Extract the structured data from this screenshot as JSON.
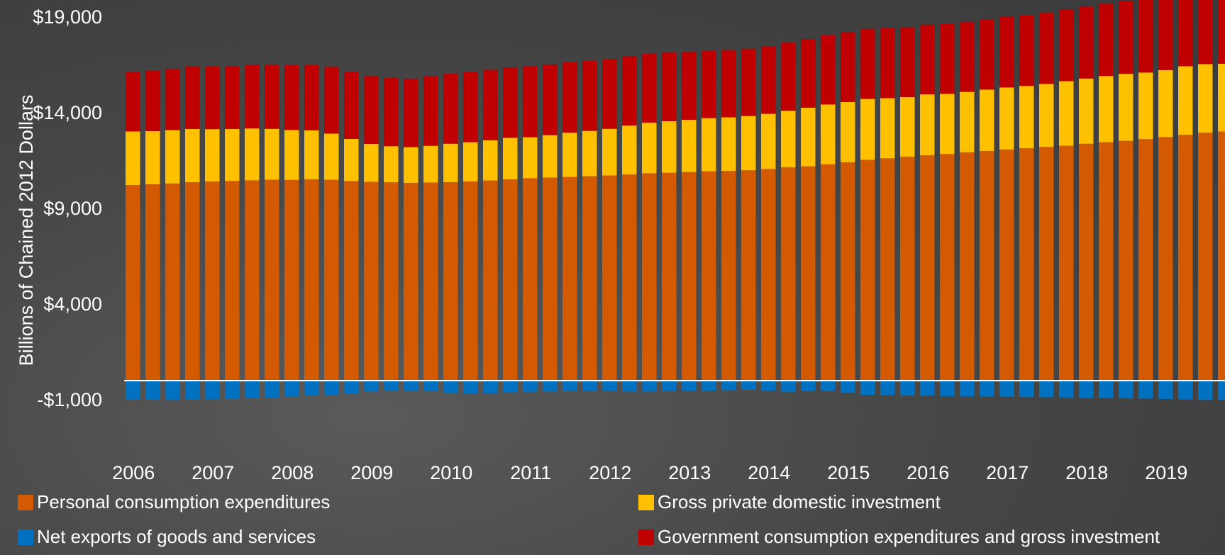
{
  "chart_data": {
    "type": "bar",
    "stacked": true,
    "ylabel": "Billions of Chained 2012 Dollars",
    "ylim": [
      -1000,
      19000
    ],
    "yticks": [
      -1000,
      4000,
      9000,
      14000,
      19000
    ],
    "ytick_labels": [
      "-$1,000",
      "$4,000",
      "$9,000",
      "$14,000",
      "$19,000"
    ],
    "x_year_labels": [
      "2006",
      "2007",
      "2008",
      "2009",
      "2010",
      "2011",
      "2012",
      "2013",
      "2014",
      "2015",
      "2016",
      "2017",
      "2018",
      "2019"
    ],
    "quarters_per_year": 4,
    "legend_position": "bottom",
    "series": [
      {
        "name": "Personal consumption expenditures",
        "color": "#D35A00",
        "values": [
          10220,
          10260,
          10300,
          10370,
          10400,
          10430,
          10460,
          10500,
          10490,
          10520,
          10490,
          10430,
          10390,
          10370,
          10330,
          10350,
          10370,
          10410,
          10460,
          10520,
          10580,
          10610,
          10640,
          10680,
          10720,
          10770,
          10830,
          10860,
          10900,
          10940,
          10960,
          10990,
          11060,
          11140,
          11200,
          11300,
          11410,
          11540,
          11620,
          11700,
          11780,
          11840,
          11930,
          12000,
          12080,
          12140,
          12210,
          12270,
          12380,
          12460,
          12530,
          12620,
          12730,
          12840,
          12960,
          13020,
          13100
        ]
      },
      {
        "name": "Gross private domestic investment",
        "color": "#FFC000",
        "values": [
          2800,
          2780,
          2790,
          2780,
          2740,
          2720,
          2720,
          2660,
          2610,
          2560,
          2420,
          2200,
          1980,
          1880,
          1870,
          1920,
          2010,
          2050,
          2100,
          2170,
          2140,
          2220,
          2320,
          2370,
          2440,
          2560,
          2650,
          2700,
          2730,
          2780,
          2800,
          2840,
          2880,
          2960,
          3060,
          3130,
          3150,
          3180,
          3140,
          3120,
          3180,
          3140,
          3160,
          3210,
          3240,
          3260,
          3290,
          3380,
          3410,
          3460,
          3500,
          3480,
          3500,
          3590,
          3580,
          3540,
          3570
        ]
      },
      {
        "name": "Net exports of goods and services",
        "color": "#0070C0",
        "values": [
          -980,
          -1000,
          -1010,
          -980,
          -960,
          -950,
          -920,
          -880,
          -830,
          -780,
          -760,
          -700,
          -570,
          -510,
          -530,
          -560,
          -650,
          -670,
          -660,
          -620,
          -580,
          -570,
          -560,
          -560,
          -560,
          -570,
          -570,
          -560,
          -550,
          -520,
          -500,
          -480,
          -530,
          -580,
          -560,
          -540,
          -640,
          -740,
          -760,
          -780,
          -790,
          -810,
          -820,
          -830,
          -840,
          -860,
          -870,
          -880,
          -910,
          -920,
          -930,
          -940,
          -960,
          -990,
          -1010,
          -1020,
          -1030
        ]
      },
      {
        "name": "Government consumption expenditures and gross investment",
        "color": "#C00000",
        "values": [
          3120,
          3150,
          3190,
          3250,
          3270,
          3290,
          3310,
          3340,
          3380,
          3420,
          3480,
          3520,
          3560,
          3560,
          3580,
          3620,
          3650,
          3670,
          3680,
          3680,
          3690,
          3680,
          3670,
          3650,
          3640,
          3620,
          3600,
          3580,
          3560,
          3530,
          3510,
          3510,
          3530,
          3560,
          3590,
          3620,
          3640,
          3660,
          3650,
          3640,
          3640,
          3650,
          3660,
          3680,
          3690,
          3700,
          3710,
          3740,
          3770,
          3790,
          3810,
          3820,
          3830,
          3860,
          3890,
          3910,
          3940
        ]
      }
    ]
  }
}
